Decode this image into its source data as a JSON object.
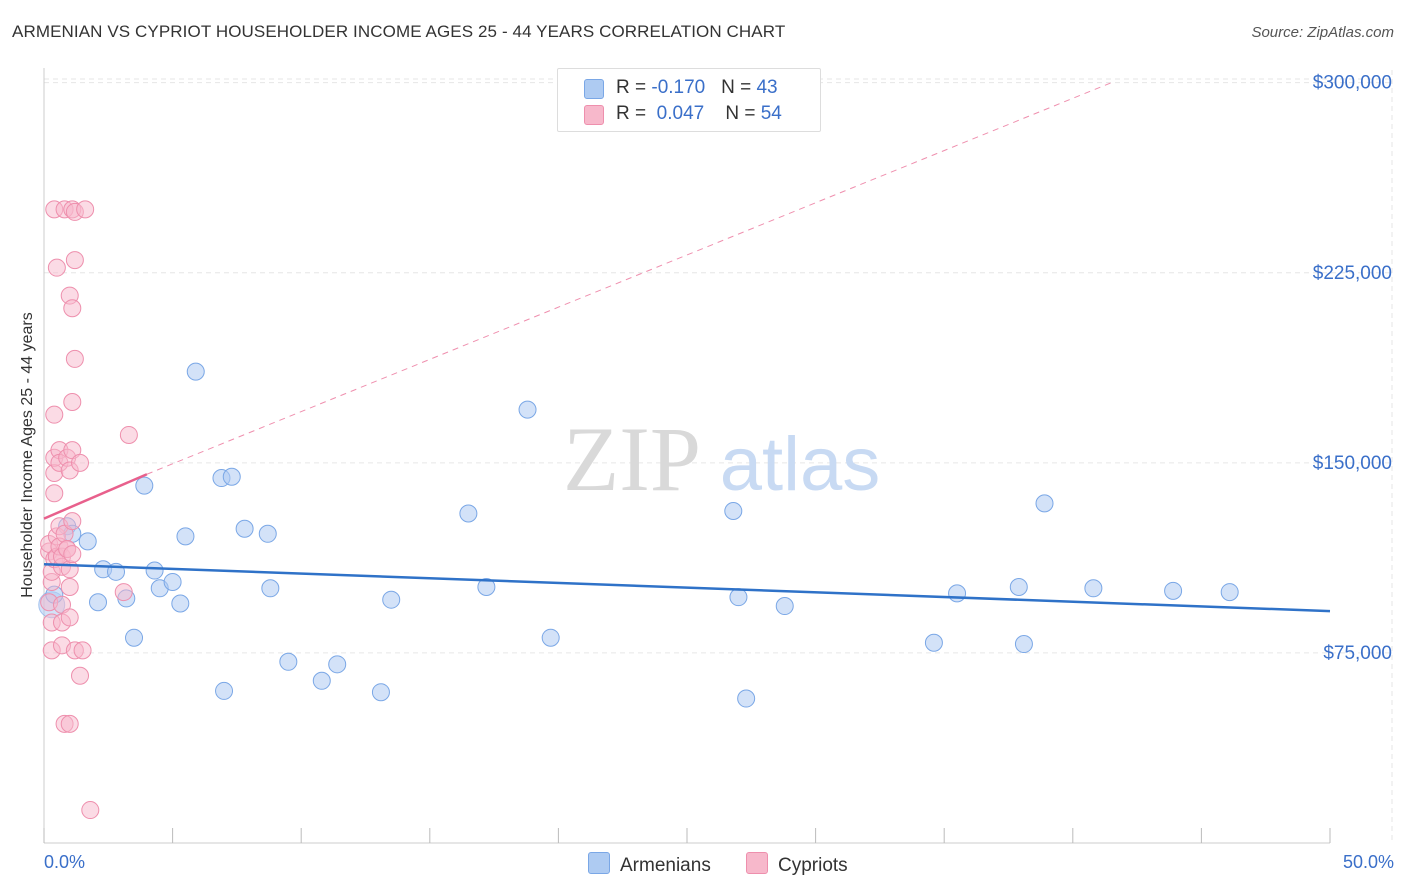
{
  "title": "ARMENIAN VS CYPRIOT HOUSEHOLDER INCOME AGES 25 - 44 YEARS CORRELATION CHART",
  "source": "Source: ZipAtlas.com",
  "watermark": {
    "zip": "ZIP",
    "atlas": "atlas"
  },
  "legend": {
    "rows": [
      {
        "r_label": "R = ",
        "r_value": "-0.170",
        "n_label": "N = ",
        "n_value": "43"
      },
      {
        "r_label": "R = ",
        "r_value": "0.047",
        "n_label": "N = ",
        "n_value": "54"
      }
    ]
  },
  "bottom_legend": {
    "armenians": "Armenians",
    "cypriots": "Cypriots"
  },
  "x_axis": {
    "min_label": "0.0%",
    "max_label": "50.0%"
  },
  "colors": {
    "armenian_fill": "#aecbf2",
    "armenian_stroke": "#7aa7e6",
    "armenian_line": "#2f72c8",
    "cypriot_fill": "#f7b8cb",
    "cypriot_stroke": "#ee8fad",
    "cypriot_line": "#e8608c",
    "tick_text": "#3a6fc9"
  },
  "chart_data": {
    "type": "scatter",
    "title": "ARMENIAN VS CYPRIOT HOUSEHOLDER INCOME AGES 25 - 44 YEARS CORRELATION CHART",
    "xlabel": "",
    "ylabel": "Householder Income Ages 25 - 44 years",
    "xlim": [
      0,
      50
    ],
    "ylim": [
      0,
      305000
    ],
    "y_ticks": [
      75000,
      150000,
      225000,
      300000
    ],
    "y_tick_labels": [
      "$75,000",
      "$150,000",
      "$225,000",
      "$300,000"
    ],
    "x_tick_labels": [
      "0.0%",
      "50.0%"
    ],
    "grid": true,
    "legend_position": "top-center",
    "series": [
      {
        "name": "Armenians",
        "r": -0.17,
        "n": 43,
        "trend": {
          "x": [
            0,
            50
          ],
          "y": [
            110000,
            91500
          ]
        },
        "points": [
          [
            0.4,
            98000
          ],
          [
            0.9,
            125000
          ],
          [
            1.1,
            122000
          ],
          [
            1.7,
            119000
          ],
          [
            2.1,
            95000
          ],
          [
            2.3,
            108000
          ],
          [
            2.8,
            107000
          ],
          [
            3.2,
            96500
          ],
          [
            3.5,
            81000
          ],
          [
            3.9,
            141000
          ],
          [
            4.3,
            107500
          ],
          [
            4.5,
            100500
          ],
          [
            5.0,
            103000
          ],
          [
            5.3,
            94500
          ],
          [
            5.5,
            121000
          ],
          [
            5.9,
            186000
          ],
          [
            6.9,
            144000
          ],
          [
            7.0,
            60000
          ],
          [
            7.3,
            144500
          ],
          [
            7.8,
            124000
          ],
          [
            8.7,
            122000
          ],
          [
            8.8,
            100500
          ],
          [
            9.5,
            71500
          ],
          [
            10.8,
            64000
          ],
          [
            11.4,
            70500
          ],
          [
            13.1,
            59500
          ],
          [
            13.5,
            96000
          ],
          [
            16.5,
            130000
          ],
          [
            17.2,
            101000
          ],
          [
            18.8,
            171000
          ],
          [
            19.7,
            81000
          ],
          [
            26.8,
            131000
          ],
          [
            27.0,
            97000
          ],
          [
            27.3,
            57000
          ],
          [
            28.8,
            93500
          ],
          [
            34.6,
            79000
          ],
          [
            35.5,
            98500
          ],
          [
            37.9,
            101000
          ],
          [
            38.1,
            78500
          ],
          [
            38.9,
            134000
          ],
          [
            40.8,
            100500
          ],
          [
            43.9,
            99500
          ],
          [
            46.1,
            99000
          ]
        ]
      },
      {
        "name": "Cypriots",
        "r": 0.047,
        "n": 54,
        "trend": {
          "x": [
            0,
            4.0
          ],
          "y": [
            128000,
            145500
          ],
          "extended": {
            "x": [
              4.0,
              41.5
            ],
            "y": [
              145500,
              300000
            ]
          }
        },
        "points": [
          [
            0.2,
            95000
          ],
          [
            0.2,
            115000
          ],
          [
            0.2,
            118000
          ],
          [
            0.3,
            87000
          ],
          [
            0.3,
            76000
          ],
          [
            0.3,
            103000
          ],
          [
            0.3,
            107000
          ],
          [
            0.4,
            112000
          ],
          [
            0.4,
            146000
          ],
          [
            0.4,
            138000
          ],
          [
            0.4,
            152000
          ],
          [
            0.4,
            169000
          ],
          [
            0.4,
            250000
          ],
          [
            0.5,
            113000
          ],
          [
            0.5,
            227000
          ],
          [
            0.5,
            121000
          ],
          [
            0.6,
            125000
          ],
          [
            0.6,
            117000
          ],
          [
            0.6,
            155000
          ],
          [
            0.6,
            150000
          ],
          [
            0.7,
            109000
          ],
          [
            0.7,
            113000
          ],
          [
            0.7,
            94000
          ],
          [
            0.7,
            78000
          ],
          [
            0.7,
            87000
          ],
          [
            0.8,
            47000
          ],
          [
            0.8,
            122000
          ],
          [
            0.8,
            250000
          ],
          [
            0.9,
            116000
          ],
          [
            0.9,
            116000
          ],
          [
            0.9,
            152000
          ],
          [
            1.0,
            216000
          ],
          [
            1.0,
            147000
          ],
          [
            1.0,
            108000
          ],
          [
            1.0,
            101000
          ],
          [
            1.0,
            89000
          ],
          [
            1.0,
            47000
          ],
          [
            1.1,
            250000
          ],
          [
            1.1,
            211000
          ],
          [
            1.1,
            174000
          ],
          [
            1.1,
            155000
          ],
          [
            1.1,
            127000
          ],
          [
            1.1,
            114000
          ],
          [
            1.2,
            191000
          ],
          [
            1.2,
            230000
          ],
          [
            1.2,
            249000
          ],
          [
            1.2,
            76000
          ],
          [
            1.4,
            150000
          ],
          [
            1.4,
            66000
          ],
          [
            1.5,
            76000
          ],
          [
            1.6,
            250000
          ],
          [
            1.8,
            13000
          ],
          [
            3.1,
            99000
          ],
          [
            3.3,
            161000
          ]
        ]
      }
    ]
  }
}
